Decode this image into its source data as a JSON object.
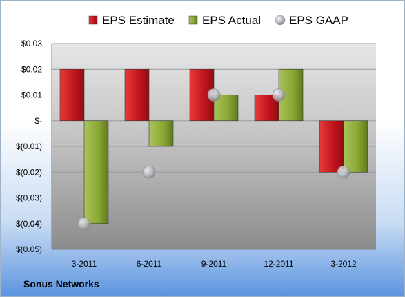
{
  "chart_data": {
    "type": "bar",
    "categories": [
      "3-2011",
      "6-2011",
      "9-2011",
      "12-2011",
      "3-2012"
    ],
    "series": [
      {
        "name": "EPS Estimate",
        "kind": "bar",
        "color": "#c0141c",
        "values": [
          0.02,
          0.02,
          0.02,
          0.01,
          -0.02
        ]
      },
      {
        "name": "EPS Actual",
        "kind": "bar",
        "color": "#8aa632",
        "values": [
          -0.04,
          -0.01,
          0.01,
          0.02,
          -0.02
        ]
      },
      {
        "name": "EPS GAAP",
        "kind": "marker",
        "color": "#b0b4b8",
        "values": [
          -0.04,
          -0.02,
          0.01,
          0.01,
          -0.02
        ]
      }
    ],
    "ylim": [
      -0.05,
      0.03
    ],
    "yticks": [
      0.03,
      0.02,
      0.01,
      0,
      -0.01,
      -0.02,
      -0.03,
      -0.04,
      -0.05
    ],
    "ytick_labels": [
      "$0.03",
      "$0.02",
      "$0.01",
      "$-",
      "$(0.01)",
      "$(0.02)",
      "$(0.03)",
      "$(0.04)",
      "$(0.05)"
    ],
    "grid": true,
    "legend": "top"
  },
  "footer": {
    "company": "Sonus Networks"
  }
}
